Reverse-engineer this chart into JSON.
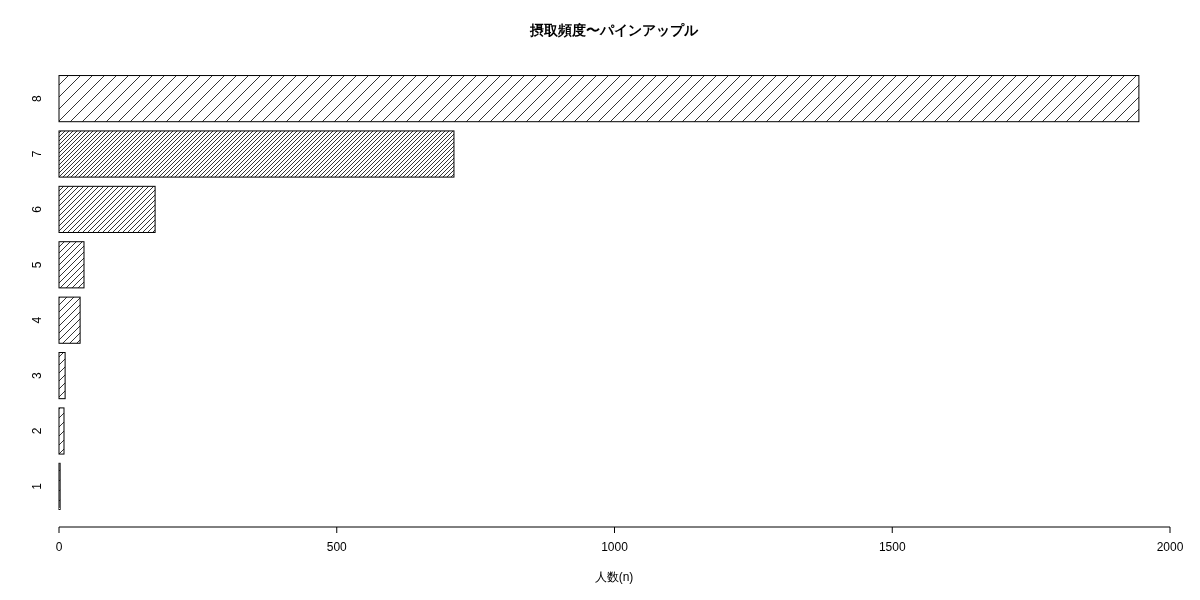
{
  "chart_data": {
    "type": "bar",
    "orientation": "horizontal",
    "title": "摂取頻度〜パインアップル",
    "xlabel": "人数(n)",
    "categories": [
      "8",
      "7",
      "6",
      "5",
      "4",
      "3",
      "2",
      "1"
    ],
    "values": [
      1944,
      711,
      173,
      45,
      38,
      11,
      9,
      2
    ],
    "color": "#000000",
    "xlim": [
      0,
      2000
    ],
    "xticks": [
      0,
      500,
      1000,
      1500,
      2000
    ]
  }
}
